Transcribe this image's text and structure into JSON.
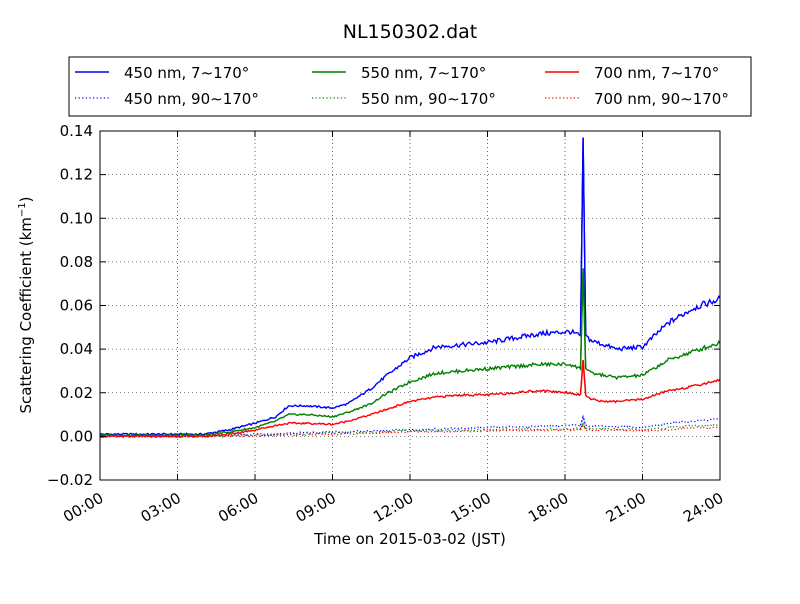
{
  "chart_data": {
    "type": "line",
    "title": "NL150302.dat",
    "xlabel": "Time on 2015-03-02 (JST)",
    "ylabel": "Scattering Coefficient (km",
    "ylabel_sup": "−1",
    "ylabel_close": ")",
    "x_unit": "hours",
    "xlim": [
      0,
      24
    ],
    "ylim": [
      -0.02,
      0.14
    ],
    "x_ticks": [
      0,
      3,
      6,
      9,
      12,
      15,
      18,
      21,
      24
    ],
    "x_tick_labels": [
      "00:00",
      "03:00",
      "06:00",
      "09:00",
      "12:00",
      "15:00",
      "18:00",
      "21:00",
      "24:00"
    ],
    "y_ticks": [
      -0.02,
      0,
      0.02,
      0.04,
      0.06,
      0.08,
      0.1,
      0.12,
      0.14
    ],
    "y_tick_labels": [
      "−0.02",
      "0.00",
      "0.02",
      "0.04",
      "0.06",
      "0.08",
      "0.10",
      "0.12",
      "0.14"
    ],
    "grid": true,
    "legend_position": "top",
    "colors": {
      "blue": "#0000ff",
      "green": "#008000",
      "red": "#ff0000"
    },
    "series": [
      {
        "name": "450 nm, 7∼170°",
        "color": "#0000ff",
        "style": "solid",
        "x": [
          0,
          2,
          4,
          5,
          6,
          6.8,
          7.3,
          8,
          9,
          9.6,
          10.5,
          11,
          12,
          13,
          14,
          15,
          16,
          17,
          18.2,
          18.6,
          18.7,
          18.8,
          19,
          19.5,
          20,
          21,
          22,
          23,
          24
        ],
        "values": [
          0.001,
          0.001,
          0.001,
          0.003,
          0.006,
          0.009,
          0.014,
          0.014,
          0.013,
          0.015,
          0.022,
          0.027,
          0.036,
          0.041,
          0.042,
          0.043,
          0.045,
          0.047,
          0.048,
          0.046,
          0.137,
          0.046,
          0.044,
          0.042,
          0.04,
          0.041,
          0.052,
          0.059,
          0.063
        ]
      },
      {
        "name": "450 nm, 90∼170°",
        "color": "#0000ff",
        "style": "dotted",
        "x": [
          0,
          4,
          6,
          9,
          12,
          15,
          18,
          18.6,
          18.7,
          18.8,
          19,
          21,
          22,
          23,
          24
        ],
        "values": [
          0.0,
          0.0,
          0.001,
          0.002,
          0.003,
          0.004,
          0.005,
          0.005,
          0.009,
          0.005,
          0.005,
          0.004,
          0.006,
          0.007,
          0.008
        ]
      },
      {
        "name": "550 nm, 7∼170°",
        "color": "#008000",
        "style": "solid",
        "x": [
          0,
          2,
          4,
          5,
          6,
          6.8,
          7.3,
          8,
          9,
          9.6,
          10.5,
          11,
          12,
          13,
          14,
          15,
          16,
          17,
          18.2,
          18.6,
          18.7,
          18.8,
          19,
          19.5,
          20,
          21,
          22,
          23,
          24
        ],
        "values": [
          0.0005,
          0.0005,
          0.0005,
          0.002,
          0.004,
          0.007,
          0.01,
          0.01,
          0.009,
          0.011,
          0.015,
          0.019,
          0.025,
          0.029,
          0.03,
          0.031,
          0.032,
          0.033,
          0.033,
          0.031,
          0.077,
          0.031,
          0.029,
          0.028,
          0.027,
          0.028,
          0.035,
          0.039,
          0.043
        ]
      },
      {
        "name": "550 nm, 90∼170°",
        "color": "#008000",
        "style": "dotted",
        "x": [
          0,
          4,
          6,
          9,
          12,
          15,
          18,
          18.6,
          18.7,
          18.8,
          19,
          21,
          22,
          23,
          24
        ],
        "values": [
          0.0,
          0.0,
          0.0005,
          0.0015,
          0.0025,
          0.003,
          0.0035,
          0.0035,
          0.006,
          0.0035,
          0.0035,
          0.003,
          0.004,
          0.005,
          0.005
        ]
      },
      {
        "name": "700 nm, 7∼170°",
        "color": "#ff0000",
        "style": "solid",
        "x": [
          0,
          2,
          4,
          5,
          6,
          6.8,
          7.3,
          8,
          9,
          9.6,
          10.5,
          11,
          12,
          13,
          14,
          15,
          16,
          17,
          18.2,
          18.6,
          18.7,
          18.8,
          19,
          19.5,
          20,
          21,
          22,
          23,
          24
        ],
        "values": [
          0.0,
          0.0,
          0.0,
          0.001,
          0.003,
          0.005,
          0.006,
          0.006,
          0.0055,
          0.007,
          0.01,
          0.012,
          0.016,
          0.018,
          0.019,
          0.019,
          0.02,
          0.021,
          0.02,
          0.019,
          0.035,
          0.019,
          0.017,
          0.016,
          0.016,
          0.017,
          0.021,
          0.023,
          0.026
        ]
      },
      {
        "name": "700 nm, 90∼170°",
        "color": "#ff0000",
        "style": "dotted",
        "x": [
          0,
          4,
          6,
          9,
          12,
          15,
          18,
          18.6,
          18.7,
          18.8,
          19,
          21,
          22,
          23,
          24
        ],
        "values": [
          0.0,
          0.0,
          0.0003,
          0.001,
          0.002,
          0.0025,
          0.003,
          0.003,
          0.005,
          0.003,
          0.003,
          0.0025,
          0.003,
          0.004,
          0.004
        ]
      }
    ]
  }
}
